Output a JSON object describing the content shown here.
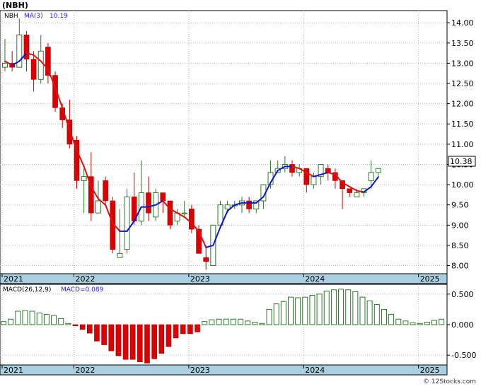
{
  "chart_data": [
    {
      "type": "candlestick",
      "title": "(NBH)",
      "ticker_label": "NBH",
      "ma_label": "MA(3)",
      "ma_value": "10.19",
      "last_price_label": "10.38",
      "ylim": [
        7.8,
        14.3
      ],
      "yticks": [
        {
          "v": 8.0,
          "label": "8.00"
        },
        {
          "v": 8.5,
          "label": "8.50"
        },
        {
          "v": 9.0,
          "label": "9.00"
        },
        {
          "v": 9.5,
          "label": "9.50"
        },
        {
          "v": 10.0,
          "label": "10.00"
        },
        {
          "v": 10.5,
          "label": "10.50"
        },
        {
          "v": 11.0,
          "label": "11.00"
        },
        {
          "v": 11.5,
          "label": "11.50"
        },
        {
          "v": 12.0,
          "label": "12.00"
        },
        {
          "v": 12.5,
          "label": "12.50"
        },
        {
          "v": 13.0,
          "label": "13.00"
        },
        {
          "v": 13.5,
          "label": "13.50"
        },
        {
          "v": 14.0,
          "label": "14.00"
        }
      ],
      "xtick_labels": [
        {
          "i": 0,
          "label": "2021"
        },
        {
          "i": 10,
          "label": "2022"
        },
        {
          "i": 26,
          "label": "2023"
        },
        {
          "i": 42,
          "label": "2024"
        },
        {
          "i": 58,
          "label": "2025"
        }
      ],
      "candles": [
        [
          12.9,
          13.0,
          13.6,
          12.8
        ],
        [
          13.0,
          12.9,
          13.3,
          12.8
        ],
        [
          12.9,
          13.7,
          14.1,
          12.9
        ],
        [
          13.7,
          13.1,
          13.8,
          12.8
        ],
        [
          13.1,
          12.6,
          13.3,
          12.3
        ],
        [
          12.6,
          13.3,
          13.7,
          12.5
        ],
        [
          13.4,
          12.7,
          13.5,
          12.5
        ],
        [
          12.7,
          11.9,
          12.8,
          11.8
        ],
        [
          11.9,
          11.6,
          12.0,
          11.4
        ],
        [
          11.6,
          11.0,
          12.1,
          10.9
        ],
        [
          11.1,
          10.1,
          11.2,
          9.9
        ],
        [
          10.1,
          10.2,
          10.4,
          9.3
        ],
        [
          10.2,
          9.3,
          10.8,
          9.1
        ],
        [
          9.3,
          9.6,
          10.1,
          9.5
        ],
        [
          10.1,
          9.6,
          10.2,
          9.5
        ],
        [
          9.6,
          8.4,
          9.7,
          8.3
        ],
        [
          8.2,
          8.3,
          9.4,
          8.2
        ],
        [
          8.4,
          9.7,
          9.9,
          8.3
        ],
        [
          9.7,
          9.1,
          10.3,
          9.0
        ],
        [
          9.1,
          9.8,
          10.6,
          9.0
        ],
        [
          9.8,
          9.3,
          10.2,
          9.1
        ],
        [
          9.2,
          9.8,
          9.9,
          9.1
        ],
        [
          9.8,
          9.6,
          9.8,
          9.3
        ],
        [
          9.6,
          9.0,
          9.6,
          8.9
        ],
        [
          9.1,
          9.3,
          9.4,
          9.0
        ],
        [
          9.3,
          9.3,
          9.6,
          9.2
        ],
        [
          9.4,
          8.9,
          9.5,
          8.8
        ],
        [
          8.9,
          8.3,
          9.0,
          8.3
        ],
        [
          8.2,
          8.1,
          8.5,
          7.9
        ],
        [
          8.0,
          9.0,
          9.0,
          8.0
        ],
        [
          9.0,
          9.5,
          9.6,
          9.0
        ],
        [
          9.4,
          9.5,
          9.6,
          9.3
        ],
        [
          9.5,
          9.5,
          9.6,
          9.4
        ],
        [
          9.5,
          9.6,
          9.7,
          9.3
        ],
        [
          9.6,
          9.4,
          9.7,
          9.3
        ],
        [
          9.4,
          9.6,
          9.6,
          9.3
        ],
        [
          9.6,
          10.0,
          10.0,
          9.4
        ],
        [
          10.0,
          10.3,
          10.6,
          9.9
        ],
        [
          10.3,
          10.4,
          10.6,
          10.3
        ],
        [
          10.4,
          10.5,
          10.7,
          10.3
        ],
        [
          10.5,
          10.3,
          10.6,
          10.2
        ],
        [
          10.3,
          10.4,
          10.5,
          10.2
        ],
        [
          10.4,
          10.0,
          10.4,
          9.8
        ],
        [
          10.0,
          10.2,
          10.3,
          9.9
        ],
        [
          10.2,
          10.5,
          10.5,
          10.0
        ],
        [
          10.4,
          10.3,
          10.5,
          10.1
        ],
        [
          10.3,
          10.1,
          10.4,
          9.9
        ],
        [
          10.1,
          9.9,
          10.0,
          9.4
        ],
        [
          9.9,
          9.8,
          9.8,
          9.7
        ],
        [
          9.7,
          9.8,
          9.9,
          9.7
        ],
        [
          9.8,
          9.9,
          9.9,
          9.7
        ],
        [
          10.1,
          10.3,
          10.6,
          9.9
        ],
        [
          10.3,
          10.4,
          10.4,
          10.2
        ]
      ],
      "ma": [
        [
          0,
          13.05
        ],
        [
          1,
          12.95
        ],
        [
          2,
          13.05
        ],
        [
          3,
          13.25
        ],
        [
          4,
          13.2
        ],
        [
          5,
          13.05
        ],
        [
          6,
          12.85
        ],
        [
          7,
          12.4
        ],
        [
          8,
          11.9
        ],
        [
          9,
          11.35
        ],
        [
          10,
          10.85
        ],
        [
          11,
          10.45
        ],
        [
          12,
          9.95
        ],
        [
          13,
          9.65
        ],
        [
          14,
          9.5
        ],
        [
          15,
          9.05
        ],
        [
          16,
          8.85
        ],
        [
          17,
          8.85
        ],
        [
          18,
          9.1
        ],
        [
          19,
          9.45
        ],
        [
          20,
          9.45
        ],
        [
          21,
          9.5
        ],
        [
          22,
          9.6
        ],
        [
          23,
          9.4
        ],
        [
          24,
          9.3
        ],
        [
          25,
          9.2
        ],
        [
          26,
          9.05
        ],
        [
          27,
          8.85
        ],
        [
          28,
          8.45
        ],
        [
          29,
          8.5
        ],
        [
          30,
          8.95
        ],
        [
          31,
          9.35
        ],
        [
          32,
          9.5
        ],
        [
          33,
          9.55
        ],
        [
          34,
          9.55
        ],
        [
          35,
          9.55
        ],
        [
          36,
          9.7
        ],
        [
          37,
          10.05
        ],
        [
          38,
          10.35
        ],
        [
          39,
          10.45
        ],
        [
          40,
          10.45
        ],
        [
          41,
          10.4
        ],
        [
          42,
          10.3
        ],
        [
          43,
          10.2
        ],
        [
          44,
          10.25
        ],
        [
          45,
          10.3
        ],
        [
          46,
          10.25
        ],
        [
          47,
          10.05
        ],
        [
          48,
          9.95
        ],
        [
          49,
          9.85
        ],
        [
          50,
          9.82
        ],
        [
          51,
          9.95
        ],
        [
          52,
          10.19
        ]
      ]
    },
    {
      "type": "bar",
      "title": "MACD(26,12,9)",
      "macd_label": "MACD=0.089",
      "ylim": [
        -0.66,
        0.66
      ],
      "yticks": [
        {
          "v": 0.5,
          "label": "0.500"
        },
        {
          "v": 0.0,
          "label": "0.000"
        },
        {
          "v": -0.5,
          "label": "-0.500"
        }
      ],
      "xtick_labels": [
        {
          "i": 0,
          "label": "2021"
        },
        {
          "i": 10,
          "label": "2022"
        },
        {
          "i": 26,
          "label": "2023"
        },
        {
          "i": 42,
          "label": "2024"
        },
        {
          "i": 58,
          "label": "2025"
        }
      ],
      "values": [
        0.05,
        0.09,
        0.22,
        0.23,
        0.22,
        0.19,
        0.17,
        0.15,
        0.1,
        0.02,
        -0.02,
        -0.08,
        -0.14,
        -0.27,
        -0.33,
        -0.43,
        -0.51,
        -0.57,
        -0.57,
        -0.61,
        -0.63,
        -0.56,
        -0.47,
        -0.36,
        -0.22,
        -0.15,
        -0.15,
        -0.12,
        0.05,
        0.08,
        0.09,
        0.09,
        0.09,
        0.09,
        0.06,
        0.04,
        0.02,
        0.25,
        0.34,
        0.38,
        0.45,
        0.44,
        0.45,
        0.48,
        0.5,
        0.55,
        0.57,
        0.58,
        0.57,
        0.54,
        0.45,
        0.39,
        0.33,
        0.25,
        0.17,
        0.09,
        0.06,
        0.03,
        0.02,
        0.04,
        0.07,
        0.09
      ]
    }
  ],
  "footer": {
    "copyright": "© 12Stocks.com"
  }
}
